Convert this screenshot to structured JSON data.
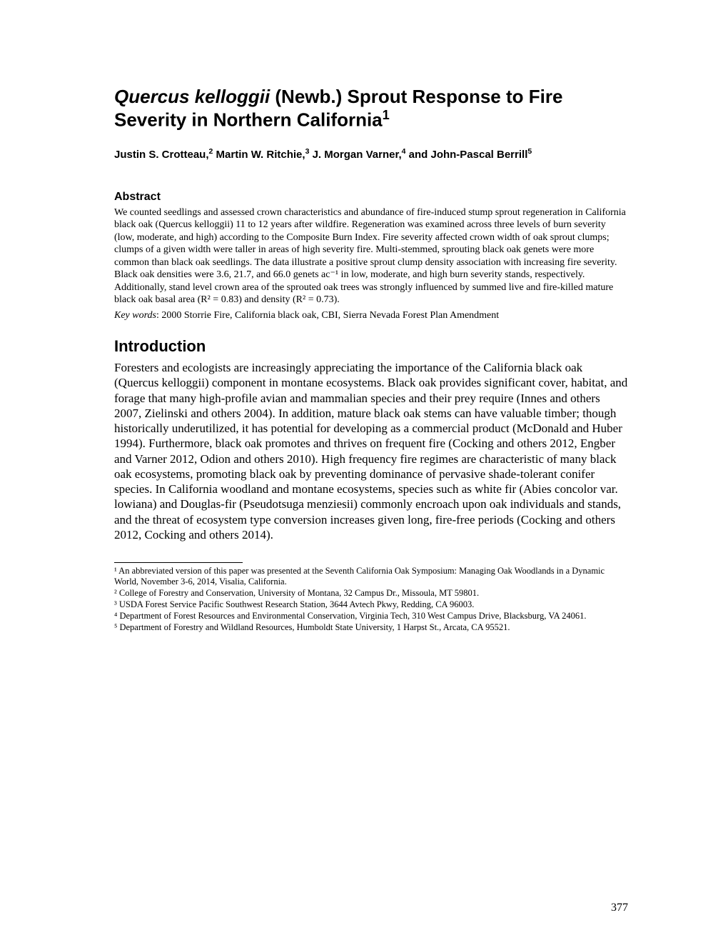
{
  "title": {
    "italic_part": "Quercus kelloggii",
    "rest": " (Newb.) Sprout Response to Fire Severity in Northern California",
    "sup": "1"
  },
  "authors_line1": "Justin S. Crotteau,",
  "authors_sup2": "2",
  "authors_mid1": " Martin W. Ritchie,",
  "authors_sup3": "3",
  "authors_mid2": " J. Morgan Varner,",
  "authors_sup4": "4",
  "authors_mid3": " and John-Pascal Berrill",
  "authors_sup5": "5",
  "abstract_heading": "Abstract",
  "abstract_body": "We counted seedlings and assessed crown characteristics and abundance of fire-induced stump sprout regeneration in California black oak (Quercus kelloggii) 11 to 12 years after wildfire. Regeneration was examined across three levels of burn severity (low, moderate, and high) according to the Composite Burn Index. Fire severity affected crown width of oak sprout clumps; clumps of a given width were taller in areas of high severity fire. Multi-stemmed, sprouting black oak genets were more common than black oak seedlings. The data illustrate a positive sprout clump density association with increasing fire severity. Black oak densities were 3.6, 21.7, and 66.0 genets ac⁻¹ in low, moderate, and high burn severity stands, respectively. Additionally, stand level crown area of the sprouted oak trees was strongly influenced by summed live and fire-killed mature black oak basal area (R² = 0.83) and density (R² = 0.73).",
  "keywords_label": "Key words",
  "keywords_text": ": 2000 Storrie Fire, California black oak, CBI, Sierra Nevada Forest Plan Amendment",
  "intro_heading": "Introduction",
  "intro_body": "Foresters and ecologists are increasingly appreciating the importance of the California black oak (Quercus kelloggii) component in montane ecosystems. Black oak provides significant cover, habitat, and forage that many high-profile avian and mammalian species and their prey require (Innes and others 2007, Zielinski and others 2004). In addition, mature black oak stems can have valuable timber; though historically underutilized, it has potential for developing as a commercial product (McDonald and Huber 1994). Furthermore, black oak promotes and thrives on frequent fire (Cocking and others 2012, Engber and Varner 2012, Odion and others 2010). High frequency fire regimes are characteristic of many black oak ecosystems, promoting black oak by preventing dominance of pervasive shade-tolerant conifer species. In California woodland and montane ecosystems, species such as white fir (Abies concolor var. lowiana) and Douglas-fir (Pseudotsuga menziesii) commonly encroach upon oak individuals and stands, and the threat of ecosystem type conversion increases given long, fire-free periods (Cocking and others 2012, Cocking and others 2014).",
  "footnotes": {
    "f1": "¹ An abbreviated version of this paper was presented at the Seventh California Oak Symposium: Managing Oak Woodlands in a Dynamic World, November 3-6, 2014, Visalia, California.",
    "f2": "² College of Forestry and Conservation, University of Montana, 32 Campus Dr., Missoula, MT 59801.",
    "f3": "³ USDA Forest Service Pacific Southwest Research Station, 3644 Avtech Pkwy, Redding, CA 96003.",
    "f4": "⁴ Department of Forest Resources and Environmental Conservation, Virginia Tech, 310 West Campus Drive, Blacksburg, VA 24061.",
    "f5": "⁵ Department of Forestry and Wildland Resources, Humboldt State University, 1 Harpst St., Arcata, CA 95521."
  },
  "page_number": "377"
}
